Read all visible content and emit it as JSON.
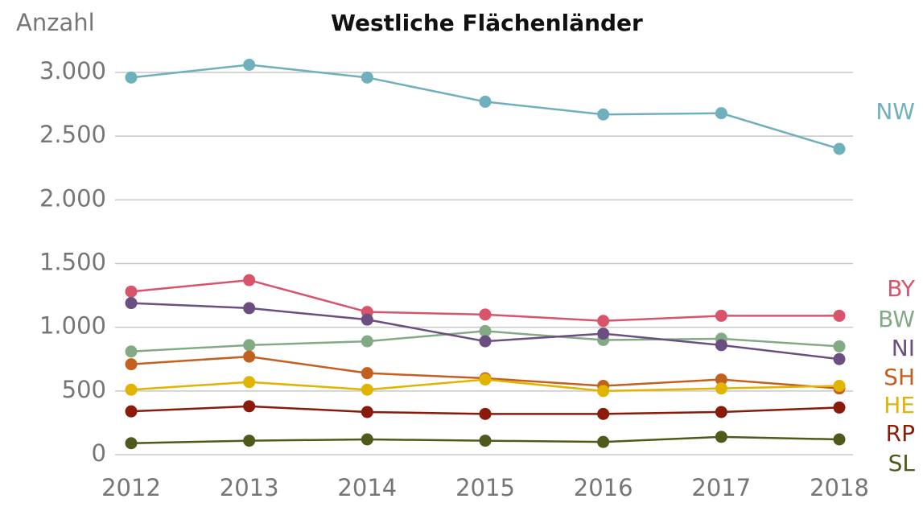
{
  "chart_data": {
    "type": "line",
    "title": "Westliche Flächenländer",
    "y_label": "Anzahl",
    "categories": [
      "2012",
      "2013",
      "2014",
      "2015",
      "2016",
      "2017",
      "2018"
    ],
    "ylim": [
      0,
      3000
    ],
    "yticks": [
      0,
      500,
      {
        "value": 1000,
        "label": "1.000"
      },
      {
        "value": 1500,
        "label": "1.500"
      },
      {
        "value": 2000,
        "label": "2.000"
      },
      {
        "value": 2500,
        "label": "2.500"
      },
      {
        "value": 3000,
        "label": "3.000"
      }
    ],
    "grid": true,
    "series": [
      {
        "name": "NW",
        "color": "#6fb0bd",
        "values": [
          2960,
          3060,
          2960,
          2770,
          2670,
          2680,
          2400
        ]
      },
      {
        "name": "BY",
        "color": "#d9536a",
        "values": [
          1280,
          1370,
          1120,
          1100,
          1050,
          1090,
          1090
        ]
      },
      {
        "name": "BW",
        "color": "#83aa85",
        "values": [
          810,
          860,
          890,
          970,
          900,
          910,
          850
        ]
      },
      {
        "name": "NI",
        "color": "#6a4f80",
        "values": [
          1190,
          1150,
          1060,
          890,
          950,
          860,
          750
        ]
      },
      {
        "name": "SH",
        "color": "#c4601f",
        "values": [
          710,
          770,
          640,
          600,
          540,
          590,
          520
        ]
      },
      {
        "name": "HE",
        "color": "#e0b400",
        "values": [
          510,
          570,
          510,
          590,
          500,
          520,
          540
        ]
      },
      {
        "name": "RP",
        "color": "#8a1a0a",
        "values": [
          340,
          380,
          335,
          320,
          320,
          335,
          370
        ]
      },
      {
        "name": "SL",
        "color": "#4e5a1a",
        "values": [
          90,
          110,
          120,
          110,
          100,
          140,
          120
        ]
      }
    ]
  }
}
